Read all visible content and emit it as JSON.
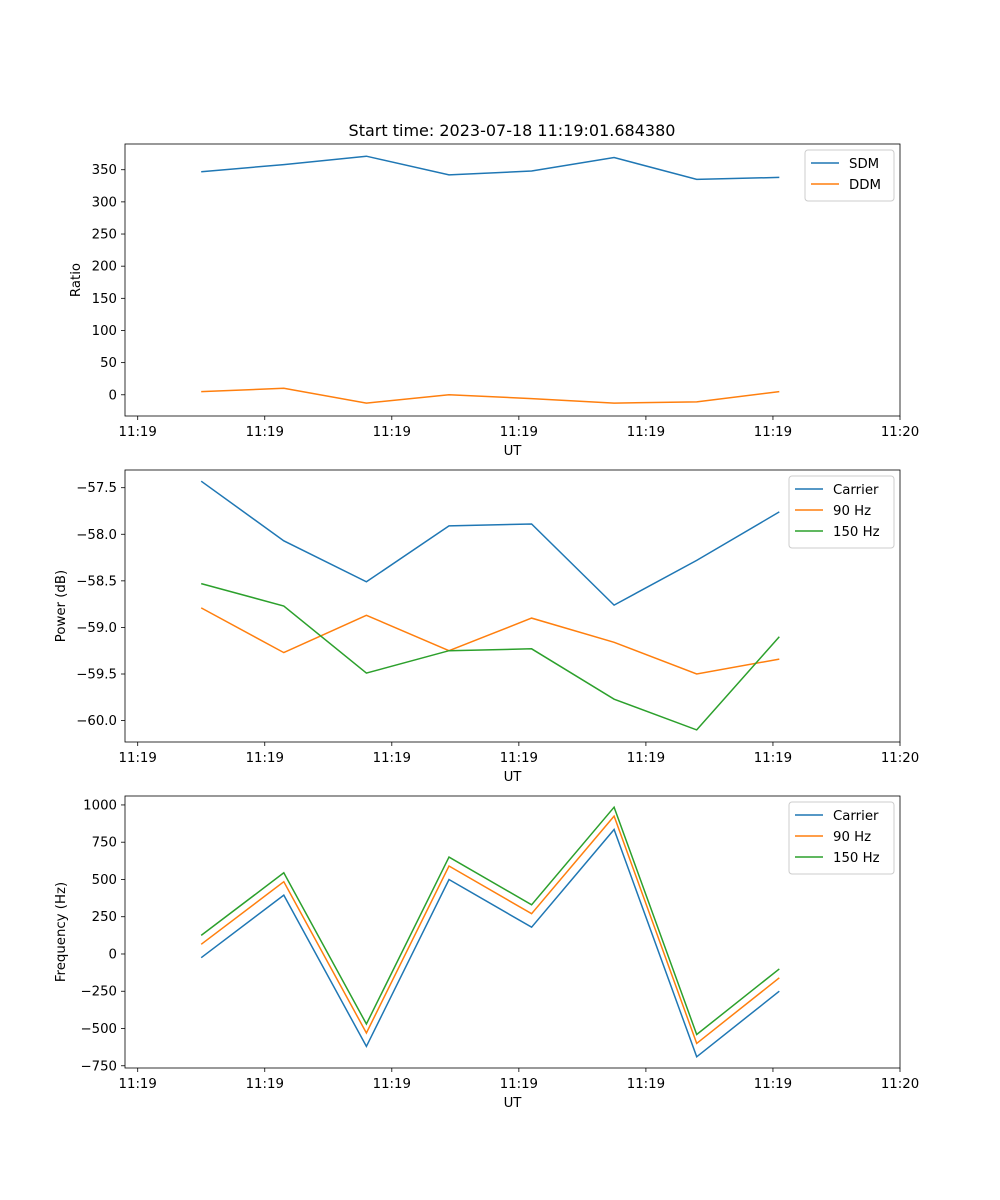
{
  "chart_data": [
    {
      "type": "line",
      "title": "Start time: 2023-07-18 11:19:01.684380",
      "xlabel": "UT",
      "ylabel": "Ratio",
      "xticks": [
        "11:19",
        "11:19",
        "11:19",
        "11:19",
        "11:19",
        "11:19",
        "11:20"
      ],
      "x": [
        0.5,
        1.15,
        1.8,
        2.45,
        3.1,
        3.75,
        4.4,
        5.05
      ],
      "xlim": [
        -0.1,
        6.0
      ],
      "ylim": [
        -33,
        390
      ],
      "yticks": [
        0,
        50,
        100,
        150,
        200,
        250,
        300,
        350
      ],
      "legend": "top-right",
      "series": [
        {
          "name": "SDM",
          "color": "#1f77b4",
          "values": [
            347,
            358,
            371,
            342,
            348,
            369,
            335,
            338
          ]
        },
        {
          "name": "DDM",
          "color": "#ff7f0e",
          "values": [
            5,
            10,
            -13,
            0,
            -6,
            -13,
            -11,
            5
          ]
        }
      ]
    },
    {
      "type": "line",
      "title": "",
      "xlabel": "UT",
      "ylabel": "Power (dB)",
      "xticks": [
        "11:19",
        "11:19",
        "11:19",
        "11:19",
        "11:19",
        "11:19",
        "11:20"
      ],
      "x": [
        0.5,
        1.15,
        1.8,
        2.45,
        3.1,
        3.75,
        4.4,
        5.05
      ],
      "xlim": [
        -0.1,
        6.0
      ],
      "ylim": [
        -60.23,
        -57.31
      ],
      "yticks": [
        "-57.5",
        "-58.0",
        "-58.5",
        "-59.0",
        "-59.5",
        "-60.0"
      ],
      "legend": "top-right",
      "series": [
        {
          "name": "Carrier",
          "color": "#1f77b4",
          "values": [
            -57.43,
            -58.07,
            -58.51,
            -57.91,
            -57.89,
            -58.76,
            -58.28,
            -57.76
          ]
        },
        {
          "name": "90 Hz",
          "color": "#ff7f0e",
          "values": [
            -58.79,
            -59.27,
            -58.87,
            -59.25,
            -58.9,
            -59.16,
            -59.5,
            -59.34
          ]
        },
        {
          "name": "150 Hz",
          "color": "#2ca02c",
          "values": [
            -58.53,
            -58.77,
            -59.49,
            -59.25,
            -59.23,
            -59.77,
            -60.1,
            -59.1
          ]
        }
      ]
    },
    {
      "type": "line",
      "title": "",
      "xlabel": "UT",
      "ylabel": "Frequency (Hz)",
      "xticks": [
        "11:19",
        "11:19",
        "11:19",
        "11:19",
        "11:19",
        "11:19",
        "11:20"
      ],
      "x": [
        0.5,
        1.15,
        1.8,
        2.45,
        3.1,
        3.75,
        4.4,
        5.05
      ],
      "xlim": [
        -0.1,
        6.0
      ],
      "ylim": [
        -765,
        1060
      ],
      "yticks": [
        "1000",
        "750",
        "500",
        "250",
        "0",
        "−250",
        "−500",
        "−750"
      ],
      "ytick_values": [
        1000,
        750,
        500,
        250,
        0,
        -250,
        -500,
        -750
      ],
      "legend": "top-right",
      "series": [
        {
          "name": "Carrier",
          "color": "#1f77b4",
          "values": [
            -25,
            395,
            -620,
            500,
            180,
            835,
            -690,
            -250
          ]
        },
        {
          "name": "90 Hz",
          "color": "#ff7f0e",
          "values": [
            65,
            485,
            -530,
            590,
            270,
            925,
            -600,
            -160
          ]
        },
        {
          "name": "150 Hz",
          "color": "#2ca02c",
          "values": [
            125,
            545,
            -470,
            650,
            330,
            985,
            -540,
            -100
          ]
        }
      ]
    }
  ]
}
